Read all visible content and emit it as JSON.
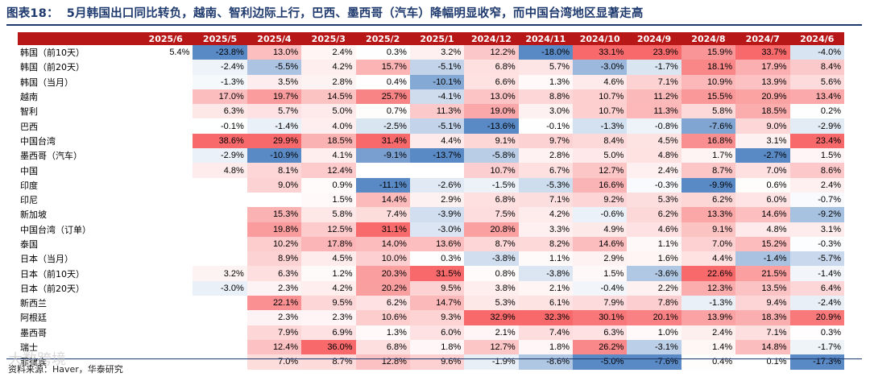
{
  "title": {
    "label": "图表18：",
    "text": "5月韩国出口同比转负，越南、智利边际上行，巴西、墨西哥（汽车）降幅明显收窄，而中国台湾地区显著走高"
  },
  "columns": [
    "2025/6",
    "2025/5",
    "2025/4",
    "2025/3",
    "2025/2",
    "2025/1",
    "2024/12",
    "2024/11",
    "2024/10",
    "2024/9",
    "2024/8",
    "2024/7",
    "2024/6"
  ],
  "rows": [
    {
      "label": "韩国（前10天）",
      "cells": [
        "5.4%",
        "-23.8%",
        "13.0%",
        "2.4%",
        "0.3%",
        "3.2%",
        "12.2%",
        "-18.0%",
        "33.1%",
        "23.9%",
        "15.9%",
        "33.7%",
        "-4.0%"
      ]
    },
    {
      "label": "韩国（前20天）",
      "cells": [
        "",
        "-2.4%",
        "-5.5%",
        "4.2%",
        "15.7%",
        "-5.1%",
        "6.8%",
        "5.7%",
        "-3.0%",
        "-1.7%",
        "18.1%",
        "17.9%",
        "8.4%"
      ]
    },
    {
      "label": "韩国（当月）",
      "cells": [
        "",
        "-1.3%",
        "3.5%",
        "2.8%",
        "0.4%",
        "-10.1%",
        "6.6%",
        "1.3%",
        "4.6%",
        "7.1%",
        "10.9%",
        "13.9%",
        "5.6%"
      ]
    },
    {
      "label": "越南",
      "cells": [
        "",
        "17.0%",
        "19.7%",
        "14.5%",
        "25.7%",
        "-4.1%",
        "13.0%",
        "8.8%",
        "10.7%",
        "11.2%",
        "15.5%",
        "20.9%",
        "13.4%"
      ]
    },
    {
      "label": "智利",
      "cells": [
        "",
        "6.3%",
        "5.7%",
        "5.0%",
        "0.7%",
        "11.3%",
        "19.0%",
        "3.0%",
        "10.7%",
        "11.3%",
        "5.8%",
        "18.5%",
        "0.2%"
      ]
    },
    {
      "label": "巴西",
      "cells": [
        "",
        "-0.1%",
        "-1.4%",
        "4.0%",
        "-2.5%",
        "-5.1%",
        "-13.6%",
        "-0.1%",
        "-1.3%",
        "-0.8%",
        "-7.6%",
        "9.0%",
        "-2.9%"
      ]
    },
    {
      "label": "中国台湾",
      "cells": [
        "",
        "38.6%",
        "29.9%",
        "18.5%",
        "31.4%",
        "4.4%",
        "9.1%",
        "9.7%",
        "8.4%",
        "4.5%",
        "16.8%",
        "3.1%",
        "23.4%"
      ]
    },
    {
      "label": "墨西哥（汽车）",
      "cells": [
        "",
        "-2.9%",
        "-10.9%",
        "4.1%",
        "-9.1%",
        "-13.7%",
        "-5.8%",
        "2.8%",
        "5.0%",
        "4.8%",
        "1.7%",
        "-2.7%",
        "1.5%"
      ]
    },
    {
      "label": "中国",
      "cells": [
        "",
        "4.8%",
        "8.1%",
        "12.4%",
        "",
        "",
        "10.7%",
        "6.7%",
        "12.7%",
        "2.4%",
        "8.7%",
        "7.0%",
        "8.6%"
      ]
    },
    {
      "label": "印度",
      "cells": [
        "",
        "",
        "9.0%",
        "0.9%",
        "-11.1%",
        "-2.6%",
        "-1.5%",
        "-5.3%",
        "16.6%",
        "-0.3%",
        "-9.9%",
        "0.6%",
        "2.4%"
      ]
    },
    {
      "label": "印尼",
      "cells": [
        "",
        "",
        "",
        "1.5%",
        "14.4%",
        "2.9%",
        "6.8%",
        "7.1%",
        "9.2%",
        "5.3%",
        "6.2%",
        "6.0%",
        "-0.7%"
      ]
    },
    {
      "label": "新加坡",
      "cells": [
        "",
        "",
        "15.3%",
        "5.8%",
        "7.4%",
        "-3.9%",
        "7.5%",
        "4.2%",
        "-0.6%",
        "6.2%",
        "13.3%",
        "14.6%",
        "-9.2%"
      ]
    },
    {
      "label": "中国台湾（订单）",
      "cells": [
        "",
        "",
        "19.8%",
        "12.5%",
        "31.1%",
        "-3.0%",
        "20.8%",
        "3.3%",
        "4.9%",
        "4.6%",
        "9.1%",
        "4.8%",
        "3.1%"
      ]
    },
    {
      "label": "泰国",
      "cells": [
        "",
        "",
        "10.2%",
        "17.8%",
        "14.0%",
        "13.6%",
        "8.7%",
        "8.2%",
        "14.6%",
        "1.1%",
        "7.0%",
        "15.2%",
        "-0.3%"
      ]
    },
    {
      "label": "日本（当月）",
      "cells": [
        "",
        "",
        "8.9%",
        "4.5%",
        "10.0%",
        "0.3%",
        "-3.8%",
        "1.1%",
        "2.9%",
        "1.6%",
        "4.4%",
        "-1.4%",
        "-5.7%"
      ]
    },
    {
      "label": "日本（前10天）",
      "cells": [
        "",
        "3.2%",
        "6.3%",
        "1.2%",
        "20.3%",
        "31.5%",
        "0.8%",
        "-3.8%",
        "1.5%",
        "-3.6%",
        "22.6%",
        "21.5%",
        "-1.4%"
      ]
    },
    {
      "label": "日本（前20天）",
      "cells": [
        "",
        "-3.0%",
        "2.3%",
        "4.2%",
        "20.2%",
        "9.5%",
        "3.8%",
        "2.1%",
        "-0.4%",
        "2.2%",
        "12.3%",
        "13.5%",
        "6.4%"
      ]
    },
    {
      "label": "新西兰",
      "cells": [
        "",
        "",
        "22.1%",
        "9.5%",
        "6.2%",
        "14.7%",
        "5.3%",
        "6.1%",
        "7.9%",
        "7.8%",
        "-1.3%",
        "9.4%",
        "-2.4%"
      ]
    },
    {
      "label": "阿根廷",
      "cells": [
        "",
        "",
        "2.3%",
        "2.3%",
        "10.6%",
        "9.3%",
        "32.9%",
        "32.3%",
        "30.1%",
        "20.1%",
        "13.9%",
        "18.3%",
        "20.9%"
      ]
    },
    {
      "label": "墨西哥",
      "cells": [
        "",
        "",
        "7.9%",
        "6.9%",
        "1.3%",
        "6.0%",
        "2.1%",
        "7.4%",
        "6.3%",
        "1.0%",
        "2.4%",
        "7.1%",
        "0.3%"
      ]
    },
    {
      "label": "瑞士",
      "cells": [
        "",
        "",
        "12.4%",
        "36.0%",
        "6.8%",
        "1.8%",
        "12.7%",
        "1.8%",
        "26.2%",
        "-3.1%",
        "1.4%",
        "14.8%",
        "-1.7%"
      ]
    },
    {
      "label": "菲律宾",
      "cells": [
        "",
        "",
        "7.0%",
        "8.7%",
        "12.8%",
        "9.6%",
        "-1.9%",
        "-8.6%",
        "-5.0%",
        "-7.6%",
        "0.4%",
        "0.1%",
        "-17.3%"
      ]
    }
  ],
  "colors": {
    "header_bg": "#b81717",
    "title_color": "#1f3a6e",
    "positive": "#f8696b",
    "negative": "#5a8ac6"
  },
  "source": "资料来源：Haver，华泰研究",
  "watermark": "大数跨境"
}
